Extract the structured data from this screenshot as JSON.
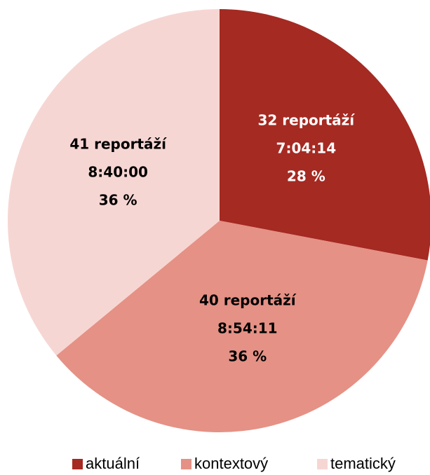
{
  "chart_data": {
    "type": "pie",
    "categories": [
      "aktuální",
      "kontextový",
      "tematický"
    ],
    "values": [
      28,
      36,
      36
    ],
    "value_labels": [
      "28 %",
      "36 %",
      "36 %"
    ],
    "reports": [
      "32 reportáží",
      "40 reportáží",
      "41 reportáží"
    ],
    "durations": [
      "7:04:14",
      "8:54:11",
      "8:40:00"
    ],
    "colors": [
      "#a52a22",
      "#e59185",
      "#f6d6d3"
    ],
    "label_colors": [
      "#ffffff",
      "#000000",
      "#000000"
    ],
    "legend": "bottom"
  }
}
